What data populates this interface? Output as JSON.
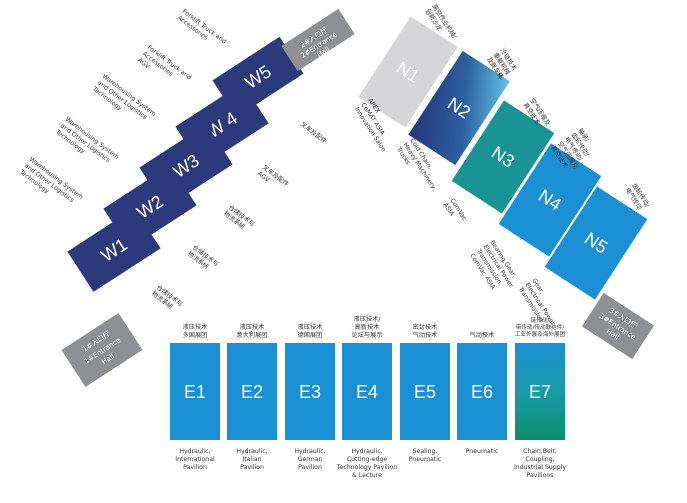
{
  "entrances": [
    {
      "id": "2#",
      "cn": "2#入口厅",
      "en": "2#Entrance",
      "en2": "Hall"
    },
    {
      "id": "1#",
      "cn": "1#入口厅",
      "en": "1#Entrance",
      "en2": "Hall"
    },
    {
      "id": "3#",
      "cn": "3#入口厅",
      "en": "3#Entrance",
      "en2": "Hall"
    }
  ],
  "w_halls": [
    {
      "code": "W5",
      "labels": [
        "Forklift Truck and",
        "Accessories"
      ],
      "cn": [
        "叉车及配件"
      ]
    },
    {
      "code": "W 4",
      "labels": [
        "Forklift Truck and",
        "Accessories",
        "AGV"
      ],
      "cn": [
        "叉车及配件",
        "AGV"
      ]
    },
    {
      "code": "W3",
      "labels": [
        "Warehousing System",
        "and Other Logistics",
        "Technology"
      ],
      "cn": [
        "仓储技术与",
        "物流系统"
      ]
    },
    {
      "code": "W2",
      "labels": [
        "Warehousing System",
        "and Other Logistics",
        "Technology"
      ],
      "cn": [
        "仓储技术与",
        "物流系统"
      ]
    },
    {
      "code": "W1",
      "labels": [
        "Warehousing System",
        "and Other Logistics",
        "Technology"
      ],
      "cn": [
        "仓储技术与",
        "物流系统"
      ]
    }
  ],
  "n_halls": [
    {
      "code": "N1",
      "en": [
        "APEX",
        "CeMAT ASIA",
        "Innovation Salon"
      ],
      "cn": [
        "高空作业机械/",
        "创新沙龙"
      ]
    },
    {
      "code": "N2",
      "en": [
        "Cold Chain,",
        "Heavy Machinery,",
        "Trucks"
      ],
      "cn": [
        "冷链技术",
        "重载机械",
        "及商车辆"
      ]
    },
    {
      "code": "N3",
      "en": [
        "ComVac",
        "ASIA"
      ],
      "cn": [
        "空气压缩及",
        "真空技术"
      ]
    },
    {
      "code": "N4",
      "en": [
        "Bearing,Gear,",
        "Electrical Power",
        "Transmission,",
        "ComVac ASIA"
      ],
      "cn": [
        "轴承/",
        "齿轮传动/",
        "电气传动/",
        "空气压缩及",
        "真空技术"
      ]
    },
    {
      "code": "N5",
      "en": [
        "Gear,",
        "Electrical Power",
        "Transmission"
      ],
      "cn": [
        "齿轮传动/",
        "电气传动"
      ]
    }
  ],
  "e_halls": [
    {
      "code": "E1",
      "cn": [
        "液压技术",
        "多国展团"
      ],
      "en": [
        "Hydraulic,",
        "International",
        "Pavilion"
      ]
    },
    {
      "code": "E2",
      "cn": [
        "液压技术",
        "意大利展团"
      ],
      "en": [
        "Hydraulic,",
        "Italian",
        "Pavilion"
      ]
    },
    {
      "code": "E3",
      "cn": [
        "液压技术",
        "德国展团"
      ],
      "en": [
        "Hydraulic,",
        "German",
        "Pavilion"
      ]
    },
    {
      "code": "E4",
      "cn": [
        "液压技术/",
        "高新技术",
        "论坛与展示"
      ],
      "en": [
        "Hydraulic,",
        "Cutting-edge",
        "Technology Pavilion",
        "& Lecture"
      ]
    },
    {
      "code": "E5",
      "cn": [
        "密封技术",
        "气动技术"
      ],
      "en": [
        "Sealing,",
        "Pneumatic"
      ]
    },
    {
      "code": "E6",
      "cn": [
        "气动技术"
      ],
      "en": [
        "Pneumatic"
      ]
    },
    {
      "code": "E7",
      "cn": [
        "链传动/",
        "带传动/传动联结件/",
        "工业外展及海外展团"
      ],
      "en": [
        "Chain,Belt,",
        "Coupling,",
        "Industrial Supply",
        "Pavilions"
      ]
    }
  ],
  "colors": {
    "navy": "#2b3a7a",
    "grey": "#8e9094",
    "lightgrey": "#d6d6d8",
    "teal": "#1a9394",
    "blue": "#1b8fd3",
    "text": "#333333"
  }
}
